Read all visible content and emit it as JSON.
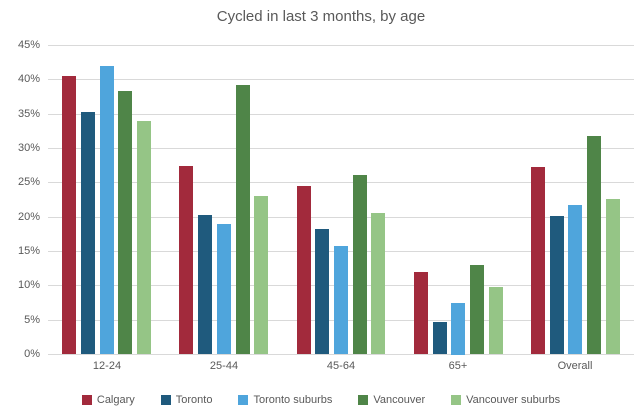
{
  "title": "Cycled in last 3 months, by age",
  "colors": {
    "background": "#ffffff",
    "gridline": "#d9d9d9",
    "axis_text": "#595959",
    "title_text": "#595959"
  },
  "chart_data": {
    "type": "bar",
    "title": "Cycled in last 3 months, by age",
    "categories": [
      "12-24",
      "25-44",
      "45-64",
      "65+",
      "Overall"
    ],
    "series": [
      {
        "name": "Calgary",
        "color": "#A22A3C",
        "values": [
          40.5,
          27.4,
          24.5,
          11.9,
          27.2
        ]
      },
      {
        "name": "Toronto",
        "color": "#1F5A7D",
        "values": [
          35.3,
          20.2,
          18.2,
          4.7,
          20.1
        ]
      },
      {
        "name": "Toronto suburbs",
        "color": "#4FA5DC",
        "values": [
          41.9,
          18.9,
          15.7,
          7.5,
          21.7
        ]
      },
      {
        "name": "Vancouver",
        "color": "#4F8548",
        "values": [
          38.3,
          39.2,
          26.1,
          13.0,
          31.7
        ]
      },
      {
        "name": "Vancouver suburbs",
        "color": "#95C586",
        "values": [
          33.9,
          23.0,
          20.5,
          9.8,
          22.6
        ]
      }
    ],
    "xlabel": "",
    "ylabel": "",
    "ylim": [
      0,
      45
    ],
    "ytick_step": 5,
    "ytick_suffix": "%",
    "grid": true,
    "legend_position": "bottom"
  }
}
